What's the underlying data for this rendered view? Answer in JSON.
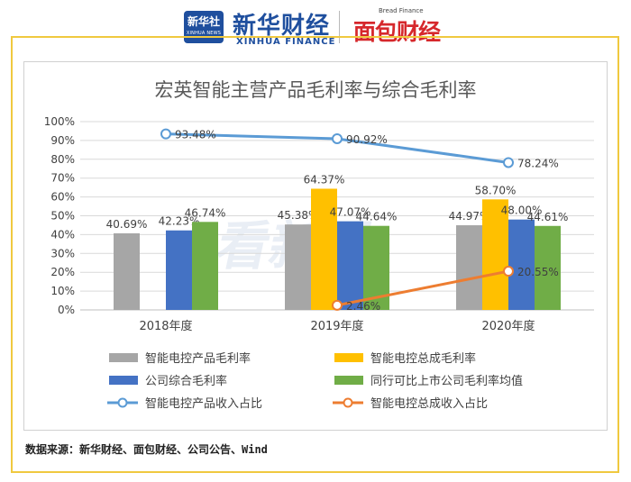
{
  "header": {
    "xinhua_badge_cn": "新华社",
    "xinhua_badge_en": "XINHUA NEWS",
    "brand_cn": "新华财经",
    "brand_en": "XINHUA FINANCE",
    "bread_en": "Bread Finance",
    "bread_cn": "面包财经"
  },
  "watermark": "看新股",
  "source": "数据来源：新华财经、面包财经、公司公告、Wind",
  "colors": {
    "gray": "#a6a6a6",
    "yellow": "#ffc000",
    "blue": "#4472c4",
    "green": "#70ad47",
    "lightblue": "#5b9bd5",
    "orange": "#ed7d31",
    "frame": "#f0c93f"
  },
  "chart_data": {
    "type": "bar",
    "title": "宏英智能主营产品毛利率与综合毛利率",
    "categories": [
      "2018年度",
      "2019年度",
      "2020年度"
    ],
    "ylim": [
      0,
      100
    ],
    "yticks": [
      "0%",
      "10%",
      "20%",
      "30%",
      "40%",
      "50%",
      "60%",
      "70%",
      "80%",
      "90%",
      "100%"
    ],
    "grid": true,
    "legend_position": "bottom",
    "series": [
      {
        "name": "智能电控产品毛利率",
        "kind": "bar",
        "color": "#a6a6a6",
        "values": [
          40.69,
          45.38,
          44.97
        ],
        "labels": [
          "40.69%",
          "45.38%",
          "44.97%"
        ]
      },
      {
        "name": "智能电控总成毛利率",
        "kind": "bar",
        "color": "#ffc000",
        "values": [
          null,
          64.37,
          58.7
        ],
        "labels": [
          "",
          "64.37%",
          "58.70%"
        ]
      },
      {
        "name": "公司综合毛利率",
        "kind": "bar",
        "color": "#4472c4",
        "values": [
          42.23,
          47.07,
          48.0
        ],
        "labels": [
          "42.23%",
          "47.07%",
          "48.00%"
        ]
      },
      {
        "name": "同行可比上市公司毛利率均值",
        "kind": "bar",
        "color": "#70ad47",
        "values": [
          46.74,
          44.64,
          44.61
        ],
        "labels": [
          "46.74%",
          "44.64%",
          "44.61%"
        ]
      },
      {
        "name": "智能电控产品收入占比",
        "kind": "line",
        "color": "#5b9bd5",
        "values": [
          93.48,
          90.92,
          78.24
        ],
        "labels": [
          "93.48%",
          "90.92%",
          "78.24%"
        ]
      },
      {
        "name": "智能电控总成收入占比",
        "kind": "line",
        "color": "#ed7d31",
        "values": [
          null,
          2.46,
          20.55
        ],
        "labels": [
          "",
          "2.46%",
          "20.55%"
        ]
      }
    ]
  }
}
